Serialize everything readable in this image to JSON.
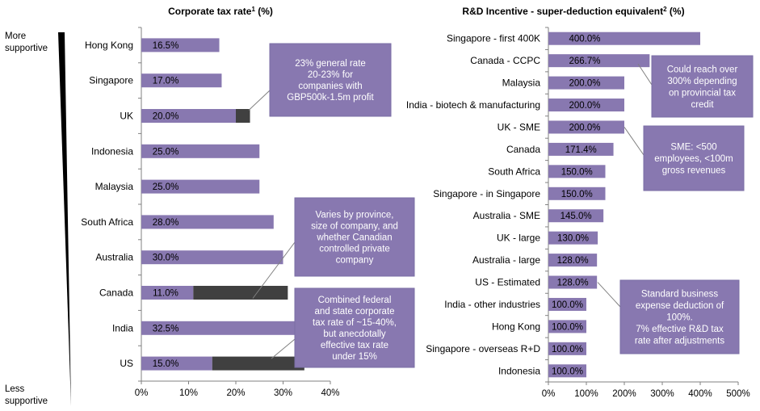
{
  "side_labels": {
    "top_line1": "More",
    "top_line2": "supportive",
    "bottom_line1": "Less",
    "bottom_line2": "supportive"
  },
  "colors": {
    "bar": "#8878b0",
    "range": "#404040",
    "note_fill": "#8878b0",
    "note_border": "#7a6ea4",
    "axis": "#808080"
  },
  "chart_data": [
    {
      "type": "bar",
      "orientation": "horizontal",
      "title_main": "Corporate tax rate",
      "title_sup": "1",
      "title_unit": " (%)",
      "categories": [
        "Hong Kong",
        "Singapore",
        "UK",
        "Indonesia",
        "Malaysia",
        "South Africa",
        "Australia",
        "Canada",
        "India",
        "US"
      ],
      "series": [
        {
          "values": [
            16.5,
            17.0,
            20.0,
            25.0,
            25.0,
            28.0,
            30.0,
            11.0,
            32.5,
            15.0
          ]
        },
        {
          "values": [
            0,
            0,
            3.0,
            0,
            0,
            0,
            0,
            20.0,
            0,
            19.5
          ]
        }
      ],
      "value_labels": [
        "16.5%",
        "17.0%",
        "20.0%",
        "25.0%",
        "25.0%",
        "28.0%",
        "30.0%",
        "11.0%",
        "32.5%",
        "15.0%"
      ],
      "xlim": [
        0,
        40
      ],
      "xticks": [
        0,
        10,
        20,
        30,
        40
      ],
      "xtick_labels": [
        "0%",
        "10%",
        "20%",
        "30%",
        "40%"
      ],
      "annotations": [
        {
          "lines": [
            "23% general rate",
            "20-23% for",
            "companies with",
            "GBP500k-1.5m profit"
          ],
          "target": "UK"
        },
        {
          "lines": [
            "Varies by province,",
            "size of company, and",
            "whether Canadian",
            "controlled private",
            "company"
          ],
          "target": "Canada"
        },
        {
          "lines": [
            "Combined federal",
            "and state corporate",
            "tax rate of ~15-40%,",
            "but anecdotally",
            "effective tax rate",
            "under 15%"
          ],
          "target": "US"
        }
      ]
    },
    {
      "type": "bar",
      "orientation": "horizontal",
      "title_main": "R&D Incentive - super-deduction equivalent",
      "title_sup": "2",
      "title_unit": " (%)",
      "categories": [
        "Singapore - first 400K",
        "Canada - CCPC",
        "Malaysia",
        "India - biotech & manufacturing",
        "UK - SME",
        "Canada",
        "South Africa",
        "Singapore - in Singapore",
        "Australia - SME",
        "UK - large",
        "Australia - large",
        "US - Estimated",
        "India - other industries",
        "Hong Kong",
        "Singapore - overseas R+D",
        "Indonesia"
      ],
      "values": [
        400.0,
        266.7,
        200.0,
        200.0,
        200.0,
        171.4,
        150.0,
        150.0,
        145.0,
        130.0,
        128.0,
        128.0,
        100.0,
        100.0,
        100.0,
        100.0
      ],
      "value_labels": [
        "400.0%",
        "266.7%",
        "200.0%",
        "200.0%",
        "200.0%",
        "171.4%",
        "150.0%",
        "150.0%",
        "145.0%",
        "130.0%",
        "128.0%",
        "128.0%",
        "100.0%",
        "100.0%",
        "100.0%",
        "100.0%"
      ],
      "xlim": [
        0,
        500
      ],
      "xticks": [
        0,
        100,
        200,
        300,
        400,
        500
      ],
      "xtick_labels": [
        "0%",
        "100%",
        "200%",
        "300%",
        "400%",
        "500%"
      ],
      "annotations": [
        {
          "lines": [
            "Could reach  over",
            "300% depending",
            "on provincial tax",
            "credit"
          ],
          "target": "Canada - CCPC"
        },
        {
          "lines": [
            "SME: <500",
            "employees, <100m",
            "gross revenues"
          ],
          "target": "UK - SME"
        },
        {
          "lines": [
            "Standard business",
            "expense deduction of",
            "100%.",
            "7% effective R&D tax",
            "rate after adjustments"
          ],
          "target": "US - Estimated"
        }
      ]
    }
  ]
}
